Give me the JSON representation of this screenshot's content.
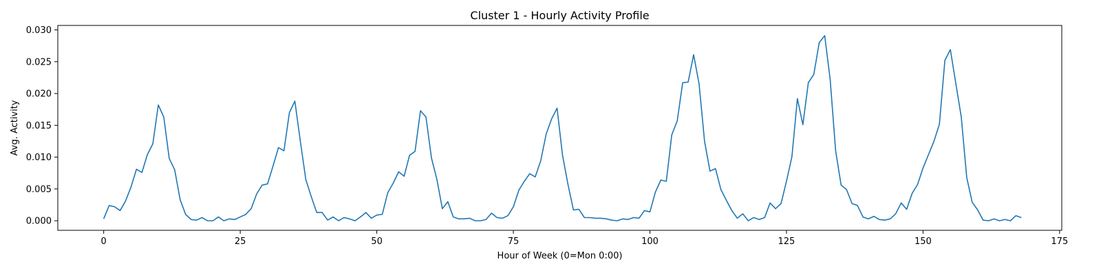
{
  "chart_data": {
    "type": "line",
    "title": "Cluster 1 - Hourly Activity Profile",
    "xlabel": "Hour of Week (0=Mon 0:00)",
    "ylabel": "Avg. Activity",
    "xlim": [
      -8.4,
      175.4
    ],
    "ylim": [
      -0.0015,
      0.0307
    ],
    "xticks": [
      0,
      25,
      50,
      75,
      100,
      125,
      150,
      175
    ],
    "yticks": [
      0.0,
      0.005,
      0.01,
      0.015,
      0.02,
      0.025,
      0.03
    ],
    "xtick_labels": [
      "0",
      "25",
      "50",
      "75",
      "100",
      "125",
      "150",
      "175"
    ],
    "ytick_labels": [
      "0.000",
      "0.005",
      "0.010",
      "0.015",
      "0.020",
      "0.025",
      "0.030"
    ],
    "grid": false,
    "color": "#1f77b4",
    "series": [
      {
        "values": [
          0.0003,
          0.0024,
          0.0022,
          0.0016,
          0.0031,
          0.0053,
          0.0081,
          0.0076,
          0.0104,
          0.0121,
          0.0182,
          0.0163,
          0.0098,
          0.008,
          0.0033,
          0.001,
          0.0002,
          0.0001,
          0.0005,
          0.0,
          0.0,
          0.0006,
          0.0,
          0.0003,
          0.0002,
          0.0006,
          0.001,
          0.0019,
          0.0042,
          0.0056,
          0.0058,
          0.0086,
          0.0115,
          0.011,
          0.017,
          0.0188,
          0.0125,
          0.0065,
          0.0038,
          0.0013,
          0.0013,
          0.0001,
          0.0006,
          0.0,
          0.0005,
          0.0003,
          0.0,
          0.0006,
          0.0013,
          0.0004,
          0.0009,
          0.001,
          0.0044,
          0.0059,
          0.0077,
          0.007,
          0.0103,
          0.0109,
          0.0173,
          0.0163,
          0.0099,
          0.0065,
          0.0019,
          0.003,
          0.0006,
          0.0003,
          0.0003,
          0.0004,
          0.0,
          0.0,
          0.0002,
          0.0012,
          0.0005,
          0.0004,
          0.0008,
          0.0022,
          0.0048,
          0.0062,
          0.0074,
          0.0069,
          0.0094,
          0.0136,
          0.016,
          0.0177,
          0.0103,
          0.0057,
          0.0017,
          0.0018,
          0.0005,
          0.0005,
          0.0004,
          0.0004,
          0.0003,
          0.0001,
          0.0,
          0.0003,
          0.0002,
          0.0005,
          0.0004,
          0.0016,
          0.0014,
          0.0045,
          0.0064,
          0.0062,
          0.0135,
          0.0157,
          0.0217,
          0.0218,
          0.0261,
          0.0215,
          0.0125,
          0.0078,
          0.0082,
          0.0049,
          0.0032,
          0.0016,
          0.0004,
          0.0011,
          0.0,
          0.0005,
          0.0002,
          0.0005,
          0.0028,
          0.0019,
          0.0027,
          0.0062,
          0.0101,
          0.0192,
          0.0151,
          0.0217,
          0.023,
          0.028,
          0.0291,
          0.0222,
          0.011,
          0.0056,
          0.0049,
          0.0027,
          0.0024,
          0.0006,
          0.0003,
          0.0007,
          0.0002,
          0.0001,
          0.0003,
          0.0011,
          0.0028,
          0.0018,
          0.0043,
          0.0057,
          0.0083,
          0.0104,
          0.0125,
          0.0152,
          0.0252,
          0.0269,
          0.0216,
          0.0163,
          0.0068,
          0.0029,
          0.0017,
          0.0001,
          0.0,
          0.0003,
          0.0,
          0.0002,
          0.0,
          0.0008,
          0.0005
        ]
      }
    ]
  }
}
